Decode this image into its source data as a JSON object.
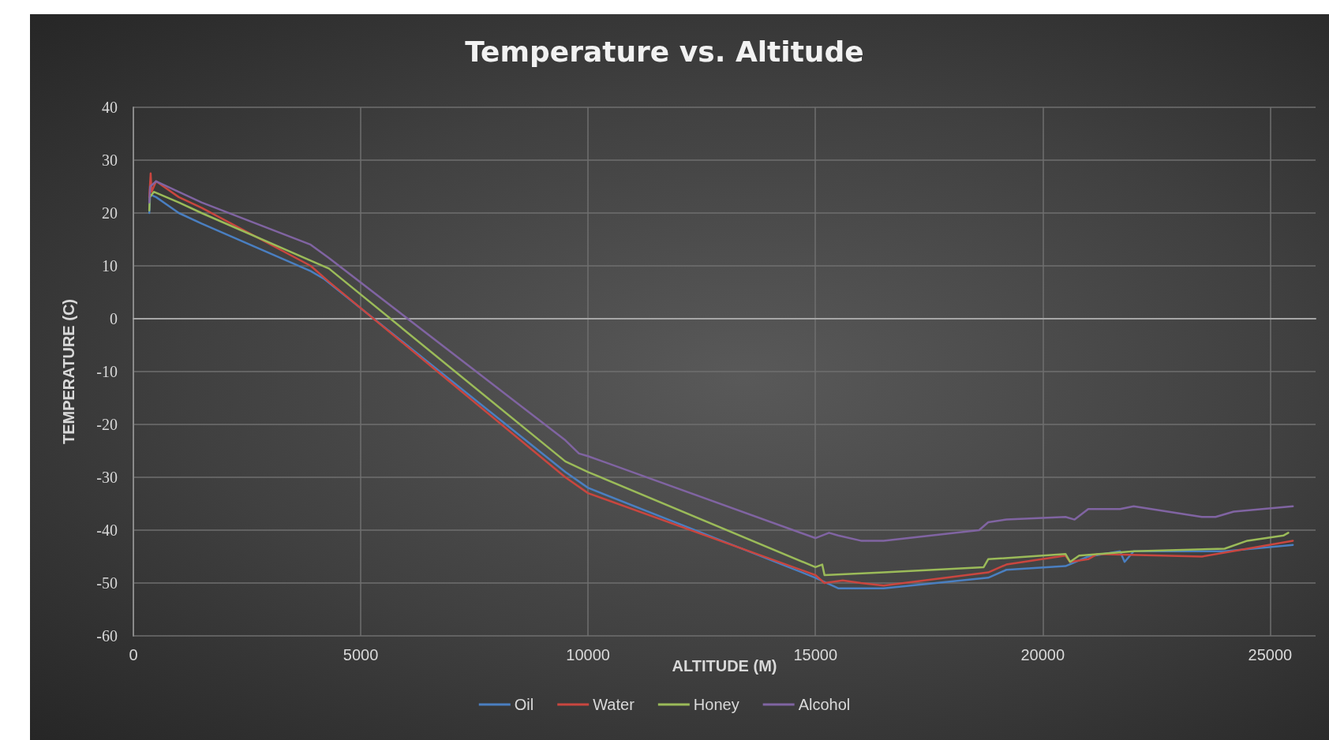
{
  "chart_data": {
    "type": "line",
    "title": "Temperature vs. Altitude",
    "xlabel": "ALTITUDE (M)",
    "ylabel": "TEMPERATURE (C)",
    "xlim": [
      0,
      26000
    ],
    "xticks": [
      0,
      5000,
      10000,
      15000,
      20000,
      25000
    ],
    "ylim": [
      -60,
      40
    ],
    "yticks": [
      -60,
      -50,
      -40,
      -30,
      -20,
      -10,
      0,
      10,
      20,
      30,
      40
    ],
    "grid": true,
    "legend": "bottom",
    "marker": "none",
    "line_style": "solid",
    "series": [
      {
        "name": "Oil",
        "color": "#4a7fc1",
        "x": [
          350,
          370,
          500,
          1000,
          1500,
          3900,
          4200,
          9500,
          10000,
          15000,
          15500,
          16000,
          16500,
          18800,
          19200,
          20500,
          21000,
          21700,
          21800,
          22000,
          24000,
          25500
        ],
        "values": [
          20,
          23.5,
          23,
          20,
          18,
          9,
          7.5,
          -29,
          -32,
          -49,
          -51,
          -51,
          -51,
          -49,
          -47.5,
          -46.8,
          -45,
          -44,
          -46,
          -44,
          -44,
          -42.8
        ]
      },
      {
        "name": "Water",
        "color": "#c9463f",
        "x": [
          350,
          380,
          400,
          500,
          1000,
          1500,
          3900,
          4300,
          9500,
          10000,
          15000,
          15200,
          15600,
          16000,
          16500,
          18800,
          19200,
          20500,
          20600,
          21000,
          21200,
          23500,
          24500,
          25500
        ],
        "values": [
          23,
          27.5,
          24,
          26,
          23,
          21,
          10,
          7,
          -30,
          -33,
          -48.5,
          -50,
          -49.5,
          -50,
          -50.5,
          -48,
          -46.5,
          -44.8,
          -46,
          -45.5,
          -44.5,
          -45,
          -43.5,
          -42
        ]
      },
      {
        "name": "Honey",
        "color": "#9bbb59",
        "x": [
          350,
          360,
          450,
          1000,
          1500,
          3900,
          4300,
          9500,
          10000,
          15000,
          15150,
          15200,
          16500,
          18700,
          18800,
          20500,
          20600,
          20800,
          22000,
          24000,
          24500,
          25300,
          25400
        ],
        "values": [
          20.5,
          23,
          24,
          22,
          20,
          11,
          9.5,
          -27,
          -29,
          -47,
          -46.5,
          -48.5,
          -48,
          -47,
          -45.5,
          -44.5,
          -46,
          -44.8,
          -44,
          -43.5,
          -42,
          -41,
          -40.5
        ]
      },
      {
        "name": "Alcohol",
        "color": "#8064a2",
        "x": [
          350,
          370,
          500,
          1500,
          3900,
          4300,
          9500,
          9800,
          10000,
          15000,
          15300,
          15500,
          16000,
          16500,
          18600,
          18800,
          19200,
          20500,
          20700,
          21000,
          21700,
          22000,
          23500,
          23800,
          24200,
          25500
        ],
        "values": [
          22,
          25,
          26,
          22,
          14,
          11.5,
          -23,
          -25.5,
          -26,
          -41.5,
          -40.5,
          -41,
          -42,
          -42,
          -40,
          -38.5,
          -38,
          -37.5,
          -38,
          -36,
          -36,
          -35.5,
          -37.5,
          -37.5,
          -36.5,
          -35.5
        ]
      }
    ]
  }
}
